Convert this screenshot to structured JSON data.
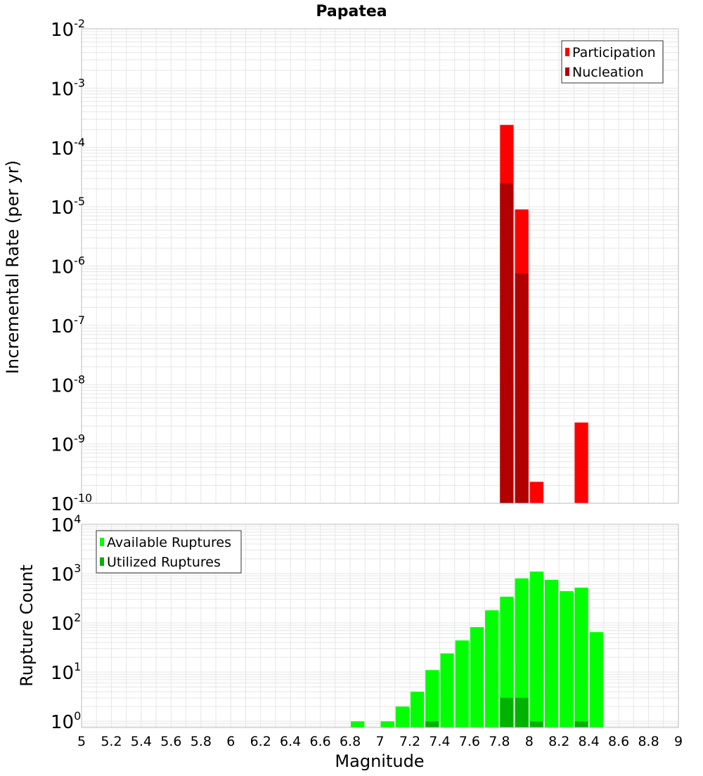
{
  "title": "Papatea",
  "xlabel": "Magnitude",
  "colors": {
    "participation": "#ff0000",
    "nucleation": "#b20000",
    "available": "#00ff00",
    "utilized": "#00b200",
    "grid": "#e6e6e6",
    "frame": "#bbbbbb"
  },
  "chart_data": [
    {
      "type": "bar",
      "ylabel": "Incremental Rate (per yr)",
      "yscale": "log",
      "ylim": [
        1e-10,
        0.01
      ],
      "xlim": [
        5,
        9
      ],
      "bar_width": 0.1,
      "grid": true,
      "legend_position": "top-right",
      "series": [
        {
          "name": "Participation",
          "color": "#ff0000",
          "x": [
            7.85,
            7.95,
            8.05,
            8.35
          ],
          "values": [
            0.00024,
            9e-06,
            2.3e-10,
            2.3e-09
          ]
        },
        {
          "name": "Nucleation",
          "color": "#b20000",
          "x": [
            7.85,
            7.95
          ],
          "values": [
            2.5e-05,
            7.5e-07
          ]
        }
      ]
    },
    {
      "type": "bar",
      "ylabel": "Rupture Count",
      "yscale": "log",
      "ylim": [
        0.75,
        10000
      ],
      "xlim": [
        5,
        9
      ],
      "bar_width": 0.1,
      "grid": true,
      "legend_position": "top-left",
      "series": [
        {
          "name": "Available Ruptures",
          "color": "#00ff00",
          "x": [
            6.85,
            7.05,
            7.15,
            7.25,
            7.35,
            7.45,
            7.55,
            7.65,
            7.75,
            7.85,
            7.95,
            8.05,
            8.15,
            8.25,
            8.35,
            8.45
          ],
          "values": [
            1,
            1,
            2,
            4,
            11,
            24,
            44,
            82,
            180,
            340,
            800,
            1100,
            750,
            440,
            520,
            65
          ]
        },
        {
          "name": "Utilized Ruptures",
          "color": "#00b200",
          "x": [
            7.35,
            7.85,
            7.95,
            8.05,
            8.35
          ],
          "values": [
            1,
            3,
            3,
            1,
            1
          ]
        }
      ],
      "xticks": [
        "5",
        "5.2",
        "5.4",
        "5.6",
        "5.8",
        "6",
        "6.2",
        "6.4",
        "6.6",
        "6.8",
        "7",
        "7.2",
        "7.4",
        "7.6",
        "7.8",
        "8",
        "8.2",
        "8.4",
        "8.6",
        "8.8",
        "9"
      ]
    }
  ],
  "top_yticks": [
    {
      "base": "10",
      "exp": "-10"
    },
    {
      "base": "10",
      "exp": "-9"
    },
    {
      "base": "10",
      "exp": "-8"
    },
    {
      "base": "10",
      "exp": "-7"
    },
    {
      "base": "10",
      "exp": "-6"
    },
    {
      "base": "10",
      "exp": "-5"
    },
    {
      "base": "10",
      "exp": "-4"
    },
    {
      "base": "10",
      "exp": "-3"
    },
    {
      "base": "10",
      "exp": "-2"
    }
  ],
  "bottom_yticks": [
    {
      "base": "10",
      "exp": "0"
    },
    {
      "base": "10",
      "exp": "1"
    },
    {
      "base": "10",
      "exp": "2"
    },
    {
      "base": "10",
      "exp": "3"
    },
    {
      "base": "10",
      "exp": "4"
    }
  ]
}
